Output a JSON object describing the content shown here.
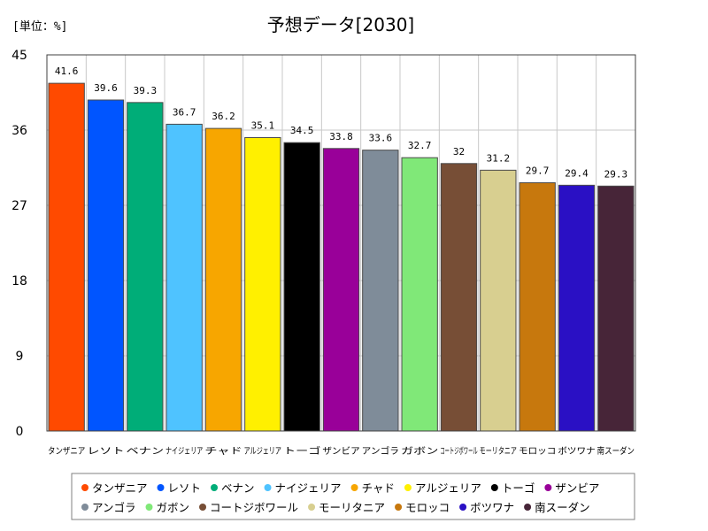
{
  "chart_data": {
    "type": "bar",
    "title": "予想データ[2030]",
    "unit_label": "[単位：%]",
    "xlabel": "",
    "ylabel": "",
    "ylim": [
      0,
      45
    ],
    "yticks": [
      0,
      9,
      18,
      27,
      36,
      45
    ],
    "grid": true,
    "legend_position": "bottom",
    "categories": [
      "タンザニア",
      "レソト",
      "ベナン",
      "ナイジェリア",
      "チャド",
      "アルジェリア",
      "トーゴ",
      "ザンビア",
      "アンゴラ",
      "ガボン",
      "コートジボワール",
      "モーリタニア",
      "モロッコ",
      "ボツワナ",
      "南スーダン"
    ],
    "values": [
      41.6,
      39.6,
      39.3,
      36.7,
      36.2,
      35.1,
      34.5,
      33.8,
      33.6,
      32.7,
      32,
      31.2,
      29.7,
      29.4,
      29.3
    ],
    "data_labels": [
      "41.6",
      "39.6",
      "39.3",
      "36.7",
      "36.2",
      "35.1",
      "34.5",
      "33.8",
      "33.6",
      "32.7",
      "32",
      "31.2",
      "29.7",
      "29.4",
      "29.3"
    ],
    "colors": [
      "#ff4a00",
      "#0055ff",
      "#00ad78",
      "#4fc3ff",
      "#f7a600",
      "#fff000",
      "#000000",
      "#990099",
      "#7f8c99",
      "#80e878",
      "#774e36",
      "#d8cf90",
      "#c7780d",
      "#2a10c4",
      "#472538"
    ]
  }
}
